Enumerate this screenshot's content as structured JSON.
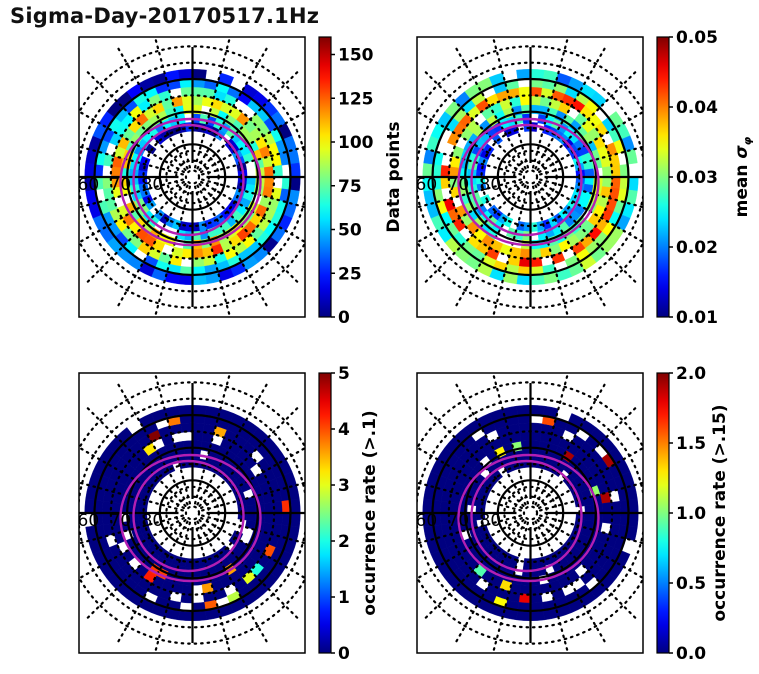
{
  "figure": {
    "title": "Sigma-Day-20170517.1Hz"
  },
  "chart_data": [
    {
      "type": "heatmap",
      "projection": "polar (magnetic latitude / MLT)",
      "panel": "top-left",
      "colormap": "jet",
      "colorbar": {
        "label": "Data points",
        "range": [
          0,
          160
        ],
        "ticks": [
          0,
          25,
          50,
          75,
          100,
          125,
          150
        ],
        "tick_labels": [
          "0",
          "25",
          "50",
          "75",
          "100",
          "125",
          "150"
        ]
      },
      "latitude_labels": [
        "60",
        "70",
        "80"
      ],
      "latitude_circles": [
        60,
        70,
        80
      ],
      "dotted_latitude_circles": [
        55,
        65,
        75,
        85
      ],
      "ring_level_profile": [
        0.15,
        0.35,
        0.55,
        0.65,
        0.5,
        0.3,
        0.12
      ],
      "boundary_ovals": 2,
      "grid": true
    },
    {
      "type": "heatmap",
      "projection": "polar (magnetic latitude / MLT)",
      "panel": "top-right",
      "colormap": "jet",
      "colorbar": {
        "label": "mean σ_φ",
        "label_main": "mean ",
        "label_symbol": "σ",
        "label_subscript": "φ",
        "range": [
          0.01,
          0.05
        ],
        "ticks": [
          0.01,
          0.02,
          0.03,
          0.04,
          0.05
        ],
        "tick_labels": [
          "0.01",
          "0.02",
          "0.03",
          "0.04",
          "0.05"
        ]
      },
      "latitude_labels": [
        "60",
        "70",
        "80"
      ],
      "latitude_circles": [
        60,
        70,
        80
      ],
      "dotted_latitude_circles": [
        55,
        65,
        75,
        85
      ],
      "ring_level_profile": [
        0.25,
        0.35,
        0.45,
        0.6,
        0.75,
        0.5,
        0.4
      ],
      "boundary_ovals": 2,
      "grid": true
    },
    {
      "type": "heatmap",
      "projection": "polar (magnetic latitude / MLT)",
      "panel": "bottom-left",
      "colormap": "jet",
      "colorbar": {
        "label": "occurrence rate (>.1)",
        "range": [
          0,
          5
        ],
        "ticks": [
          0,
          1,
          2,
          3,
          4,
          5
        ],
        "tick_labels": [
          "0",
          "1",
          "2",
          "3",
          "4",
          "5"
        ]
      },
      "latitude_labels": [
        "60",
        "70",
        "80"
      ],
      "latitude_circles": [
        60,
        70,
        80
      ],
      "dotted_latitude_circles": [
        55,
        65,
        75,
        85
      ],
      "ring_level_profile": [
        0.02,
        0.02,
        0.05,
        0.2,
        0.35,
        0.1,
        0.02
      ],
      "boundary_ovals": 2,
      "grid": true
    },
    {
      "type": "heatmap",
      "projection": "polar (magnetic latitude / MLT)",
      "panel": "bottom-right",
      "colormap": "jet",
      "colorbar": {
        "label": "occurrence rate (>.15)",
        "range": [
          0,
          2
        ],
        "ticks": [
          0,
          0.5,
          1,
          1.5,
          2
        ],
        "tick_labels": [
          "0.0",
          "0.5",
          "1.0",
          "1.5",
          "2.0"
        ]
      },
      "latitude_labels": [
        "60",
        "70",
        "80"
      ],
      "latitude_circles": [
        60,
        70,
        80
      ],
      "dotted_latitude_circles": [
        55,
        65,
        75,
        85
      ],
      "ring_level_profile": [
        0.02,
        0.02,
        0.04,
        0.15,
        0.3,
        0.08,
        0.02
      ],
      "boundary_ovals": 2,
      "grid": true
    }
  ],
  "colors": {
    "oval": "#b31fb3",
    "grid": "#000000"
  }
}
